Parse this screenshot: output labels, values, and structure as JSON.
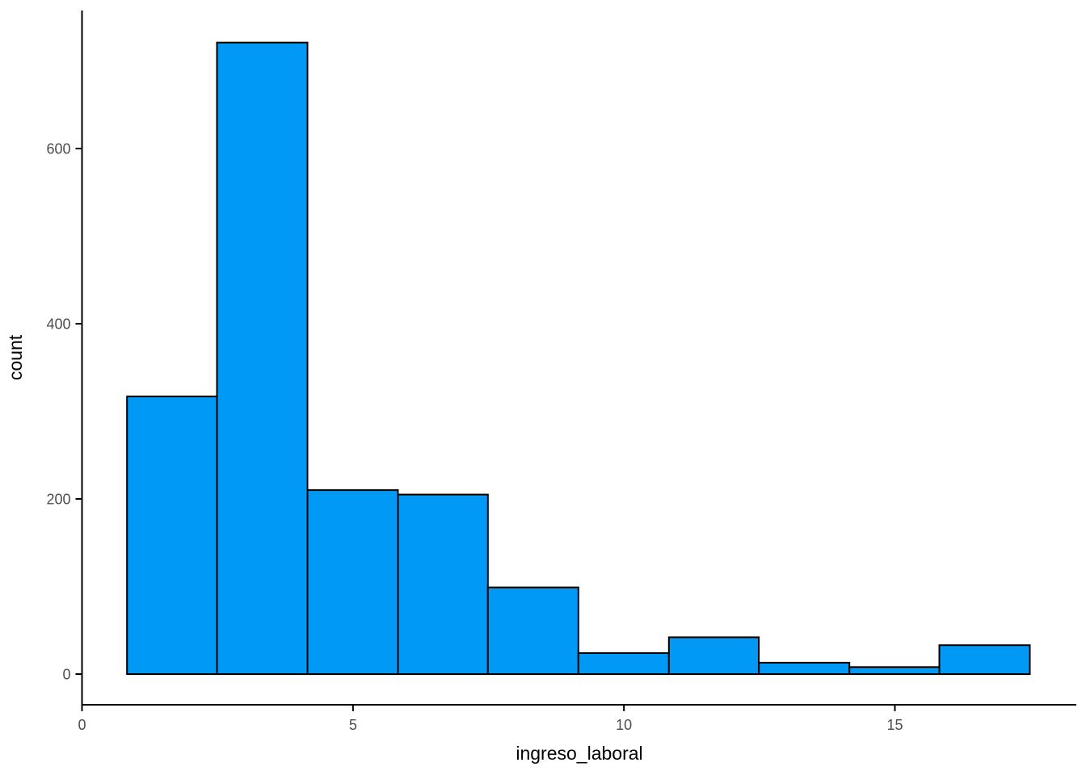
{
  "chart_data": {
    "type": "bar",
    "subtype": "histogram",
    "title": "",
    "xlabel": "ingreso_laboral",
    "ylabel": "count",
    "x_ticks": [
      0,
      5,
      10,
      15
    ],
    "y_ticks": [
      0,
      200,
      400,
      600
    ],
    "xlim": [
      0,
      18.35
    ],
    "ylim": [
      -36,
      758
    ],
    "grid": false,
    "legend": false,
    "bin_width": 1.666,
    "bins": [
      {
        "x0": 0.83,
        "x1": 2.49,
        "count": 317
      },
      {
        "x0": 2.49,
        "x1": 4.16,
        "count": 721
      },
      {
        "x0": 4.16,
        "x1": 5.83,
        "count": 210
      },
      {
        "x0": 5.83,
        "x1": 7.49,
        "count": 205
      },
      {
        "x0": 7.49,
        "x1": 9.16,
        "count": 99
      },
      {
        "x0": 9.16,
        "x1": 10.83,
        "count": 24
      },
      {
        "x0": 10.83,
        "x1": 12.49,
        "count": 42
      },
      {
        "x0": 12.49,
        "x1": 14.16,
        "count": 13
      },
      {
        "x0": 14.16,
        "x1": 15.82,
        "count": 8
      },
      {
        "x0": 15.82,
        "x1": 17.49,
        "count": 33
      }
    ],
    "colors": {
      "bar_fill": "#0099F5",
      "bar_stroke": "#000000",
      "axis_line": "#000000",
      "tick_mark": "#000000",
      "tick_label": "#4D4D4D",
      "axis_title": "#000000",
      "background": "#FFFFFF"
    }
  }
}
